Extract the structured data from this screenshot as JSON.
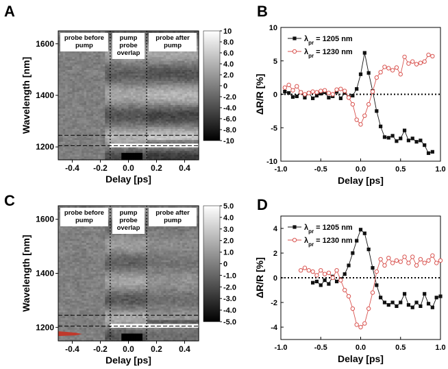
{
  "panels": {
    "A": {
      "letter": "A"
    },
    "B": {
      "letter": "B"
    },
    "C": {
      "letter": "C"
    },
    "D": {
      "letter": "D"
    }
  },
  "chart_data": [
    {
      "id": "A",
      "type": "heatmap",
      "xlabel": "Delay [ps]",
      "ylabel": "Wavelength [nm]",
      "xlim": [
        -0.5,
        0.5
      ],
      "ylim": [
        1150,
        1650
      ],
      "xticks": [
        -0.4,
        -0.2,
        0.0,
        0.2,
        0.4
      ],
      "xtick_labels": [
        "-0.4",
        "-0.2",
        "0.0",
        "0.2",
        "0.4"
      ],
      "yticks": [
        1200,
        1400,
        1600
      ],
      "ytick_labels": [
        "1200",
        "1400",
        "1600"
      ],
      "dotted_vlines": [
        -0.13,
        0.13
      ],
      "dashed_hlines": [
        1205,
        1245
      ],
      "annotations": [
        {
          "lines": [
            "probe before",
            "pump"
          ],
          "x": -0.5
        },
        {
          "lines": [
            "pump",
            "probe",
            "overlap"
          ],
          "x": -0.13
        },
        {
          "lines": [
            "probe after",
            "pump"
          ],
          "x": 0.13
        }
      ],
      "colorbar": {
        "min": -10,
        "max": 10,
        "ticks": [
          10,
          8.0,
          6.0,
          4.0,
          2.0,
          0,
          -2.0,
          -4.0,
          -6.0,
          -8.0,
          -10
        ],
        "labels": [
          "10",
          "8.0",
          "6.0",
          "4.0",
          "2.0",
          "0",
          "-2.0",
          "-4.0",
          "-6.0",
          "-8.0",
          "-10"
        ]
      }
    },
    {
      "id": "B",
      "type": "line",
      "xlabel": "Delay [ps]",
      "ylabel": "ΔR/R [%]",
      "xlim": [
        -1.0,
        1.0
      ],
      "ylim": [
        -10,
        10
      ],
      "xticks": [
        -1.0,
        -0.5,
        0.0,
        0.5,
        1.0
      ],
      "xtick_labels": [
        "-1.0",
        "-0.5",
        "0.0",
        "0.5",
        "1.0"
      ],
      "yticks": [
        -10,
        -5,
        0,
        5,
        10
      ],
      "ytick_labels": [
        "-10",
        "-5",
        "0",
        "5",
        "10"
      ],
      "zero_line": true,
      "series": [
        {
          "name": "λpr = 1205 nm",
          "legend_symbol": "λ",
          "legend_sub": "pr",
          "legend_text": " = 1205 nm",
          "color": "#111111",
          "marker": "square",
          "x": [
            -0.95,
            -0.9,
            -0.85,
            -0.8,
            -0.75,
            -0.7,
            -0.65,
            -0.6,
            -0.55,
            -0.5,
            -0.45,
            -0.4,
            -0.35,
            -0.3,
            -0.25,
            -0.2,
            -0.15,
            -0.1,
            -0.05,
            0.0,
            0.05,
            0.1,
            0.15,
            0.2,
            0.25,
            0.3,
            0.35,
            0.4,
            0.45,
            0.5,
            0.55,
            0.6,
            0.65,
            0.7,
            0.75,
            0.8,
            0.85,
            0.9
          ],
          "y": [
            0.4,
            0.2,
            -0.4,
            -0.3,
            0.3,
            -0.5,
            0.2,
            -0.6,
            -0.2,
            0.1,
            0.3,
            -0.5,
            -0.3,
            0.4,
            -0.6,
            0.2,
            -0.4,
            -0.2,
            0.8,
            3.0,
            6.2,
            3.2,
            0.5,
            -2.5,
            -4.8,
            -6.4,
            -6.5,
            -6.2,
            -7.0,
            -6.6,
            -5.4,
            -6.9,
            -6.6,
            -7.1,
            -6.9,
            -7.6,
            -8.8,
            -8.6
          ]
        },
        {
          "name": "λpr = 1230 nm",
          "legend_symbol": "λ",
          "legend_sub": "pr",
          "legend_text": " = 1230 nm",
          "color": "#d9534f",
          "marker": "circle",
          "x": [
            -0.95,
            -0.9,
            -0.85,
            -0.8,
            -0.75,
            -0.7,
            -0.65,
            -0.6,
            -0.55,
            -0.5,
            -0.45,
            -0.4,
            -0.35,
            -0.3,
            -0.25,
            -0.2,
            -0.15,
            -0.1,
            -0.05,
            0.0,
            0.05,
            0.1,
            0.15,
            0.2,
            0.25,
            0.3,
            0.35,
            0.4,
            0.45,
            0.5,
            0.55,
            0.6,
            0.65,
            0.7,
            0.75,
            0.8,
            0.85,
            0.9
          ],
          "y": [
            1.0,
            1.4,
            0.6,
            1.2,
            0.3,
            0.0,
            0.2,
            0.4,
            0.3,
            0.5,
            0.6,
            0.2,
            0.0,
            0.7,
            0.8,
            0.5,
            -0.5,
            -1.5,
            -3.8,
            -4.5,
            -3.2,
            -1.5,
            0.4,
            2.5,
            3.3,
            4.1,
            3.9,
            3.6,
            4.0,
            3.0,
            5.6,
            4.6,
            4.9,
            4.5,
            4.7,
            4.9,
            5.9,
            5.7
          ]
        }
      ]
    },
    {
      "id": "C",
      "type": "heatmap",
      "xlabel": "Delay [ps]",
      "ylabel": "Wavelength [nm]",
      "xlim": [
        -0.5,
        0.5
      ],
      "ylim": [
        1150,
        1650
      ],
      "xticks": [
        -0.4,
        -0.2,
        0.0,
        0.2,
        0.4
      ],
      "xtick_labels": [
        "-0.4",
        "-0.2",
        "0.0",
        "0.2",
        "0.4"
      ],
      "yticks": [
        1200,
        1400,
        1600
      ],
      "ytick_labels": [
        "1200",
        "1400",
        "1600"
      ],
      "dotted_vlines": [
        -0.13,
        0.13
      ],
      "dashed_hlines": [
        1205,
        1245
      ],
      "annotations": [
        {
          "lines": [
            "probe before",
            "pump"
          ],
          "x": -0.5
        },
        {
          "lines": [
            "pump",
            "probe",
            "overlap"
          ],
          "x": -0.13
        },
        {
          "lines": [
            "probe after",
            "pump"
          ],
          "x": 0.13
        }
      ],
      "colorbar": {
        "min": -5,
        "max": 5,
        "ticks": [
          5.0,
          4.0,
          3.0,
          2.0,
          1.0,
          0,
          -1.0,
          -2.0,
          -3.0,
          -4.0,
          -5.0
        ],
        "labels": [
          "5.0",
          "4.0",
          "3.0",
          "2.0",
          "1.0",
          "0",
          "-1.0",
          "-2.0",
          "-3.0",
          "-4.0",
          "-5.0"
        ]
      }
    },
    {
      "id": "D",
      "type": "line",
      "xlabel": "Delay [ps]",
      "ylabel": "ΔR/R [%]",
      "xlim": [
        -1.0,
        1.0
      ],
      "ylim": [
        -5,
        5
      ],
      "xticks": [
        -1.0,
        -0.5,
        0.0,
        0.5,
        1.0
      ],
      "xtick_labels": [
        "-1.0",
        "-0.5",
        "0.0",
        "0.5",
        "1.0"
      ],
      "yticks": [
        -4,
        -2,
        0,
        2,
        4
      ],
      "ytick_labels": [
        "-4",
        "-2",
        "0",
        "2",
        "4"
      ],
      "zero_line": true,
      "series": [
        {
          "name": "λpr = 1205 nm",
          "legend_symbol": "λ",
          "legend_sub": "pr",
          "legend_text": " = 1205 nm",
          "color": "#111111",
          "marker": "square",
          "x": [
            -0.6,
            -0.55,
            -0.5,
            -0.45,
            -0.4,
            -0.35,
            -0.3,
            -0.25,
            -0.2,
            -0.15,
            -0.1,
            -0.05,
            0.0,
            0.05,
            0.1,
            0.15,
            0.2,
            0.25,
            0.3,
            0.35,
            0.4,
            0.45,
            0.5,
            0.55,
            0.6,
            0.65,
            0.7,
            0.75,
            0.8,
            0.85,
            0.9,
            0.95,
            1.0
          ],
          "y": [
            -0.4,
            -0.3,
            -0.6,
            -0.2,
            -0.5,
            0.1,
            -0.3,
            -0.1,
            0.3,
            1.0,
            2.0,
            3.0,
            3.9,
            3.6,
            2.3,
            0.8,
            -0.6,
            -1.6,
            -2.0,
            -2.2,
            -2.0,
            -2.3,
            -2.0,
            -1.3,
            -2.2,
            -2.4,
            -2.0,
            -2.3,
            -1.3,
            -2.1,
            -2.4,
            -1.6,
            -1.5
          ]
        },
        {
          "name": "λpr = 1230 nm",
          "legend_symbol": "λ",
          "legend_sub": "pr",
          "legend_text": " = 1230 nm",
          "color": "#d9534f",
          "marker": "circle",
          "x": [
            -0.75,
            -0.7,
            -0.65,
            -0.6,
            -0.55,
            -0.5,
            -0.45,
            -0.4,
            -0.35,
            -0.3,
            -0.25,
            -0.2,
            -0.15,
            -0.1,
            -0.05,
            0.0,
            0.05,
            0.1,
            0.15,
            0.2,
            0.25,
            0.3,
            0.35,
            0.4,
            0.45,
            0.5,
            0.55,
            0.6,
            0.65,
            0.7,
            0.75,
            0.8,
            0.85,
            0.9,
            0.95,
            1.0
          ],
          "y": [
            0.6,
            0.8,
            0.6,
            0.5,
            0.2,
            0.6,
            0.3,
            0.4,
            0.0,
            0.6,
            -0.2,
            -1.0,
            -1.5,
            -2.5,
            -3.8,
            -4.0,
            -3.7,
            -2.5,
            -1.2,
            0.5,
            1.5,
            1.0,
            1.6,
            1.2,
            1.4,
            1.3,
            1.7,
            1.2,
            1.7,
            1.0,
            1.5,
            1.2,
            1.4,
            1.8,
            1.2,
            1.4
          ]
        }
      ]
    }
  ]
}
